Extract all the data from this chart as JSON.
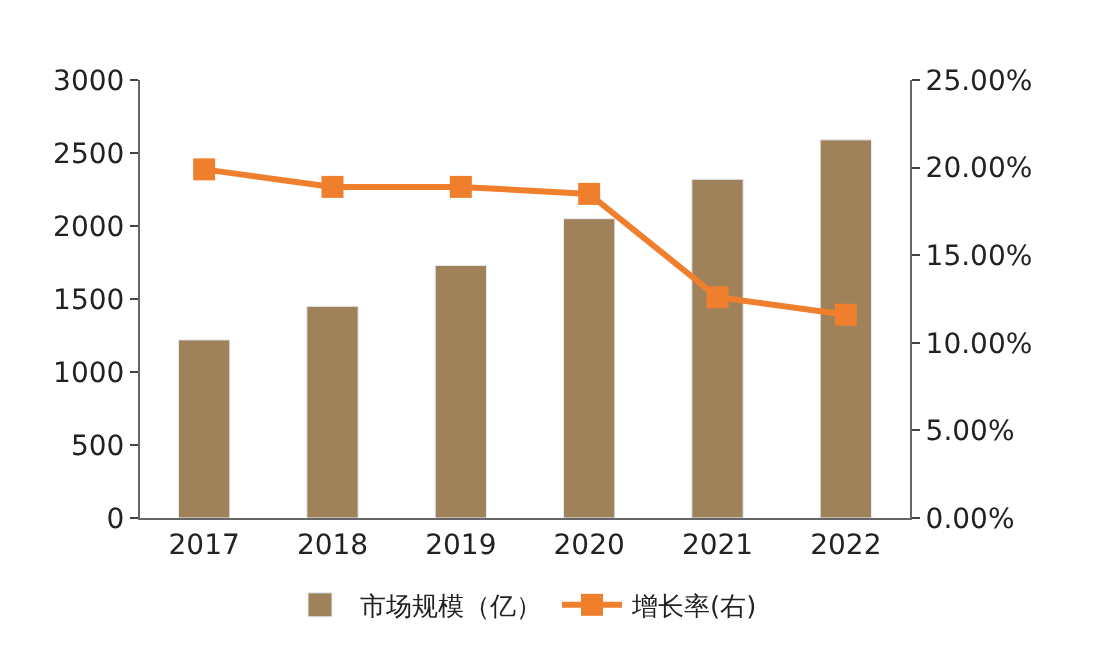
{
  "chart_data": {
    "type": "bar",
    "categories": [
      "2017",
      "2018",
      "2019",
      "2020",
      "2021",
      "2022"
    ],
    "series": [
      {
        "name": "市场规模（亿）",
        "color": "#a0825a",
        "values": [
          1220,
          1450,
          1730,
          2050,
          2320,
          2590
        ]
      },
      {
        "name": "增长率(右)",
        "type": "line",
        "axis": "y2",
        "color": "#f07f2d",
        "marker": "square",
        "values": [
          19.9,
          18.9,
          18.9,
          18.5,
          12.6,
          11.6
        ]
      }
    ],
    "ylim": [
      0,
      3000
    ],
    "yticks": [
      0,
      500,
      1000,
      1500,
      2000,
      2500,
      3000
    ],
    "y2lim": [
      0,
      25
    ],
    "y2ticks": [
      {
        "value": 0,
        "label": "0.00%"
      },
      {
        "value": 5,
        "label": "5.00%"
      },
      {
        "value": 10,
        "label": "10.00%"
      },
      {
        "value": 15,
        "label": "15.00%"
      },
      {
        "value": 20,
        "label": "20.00%"
      },
      {
        "value": 25,
        "label": "25.00%"
      }
    ],
    "legend": "bottom"
  }
}
